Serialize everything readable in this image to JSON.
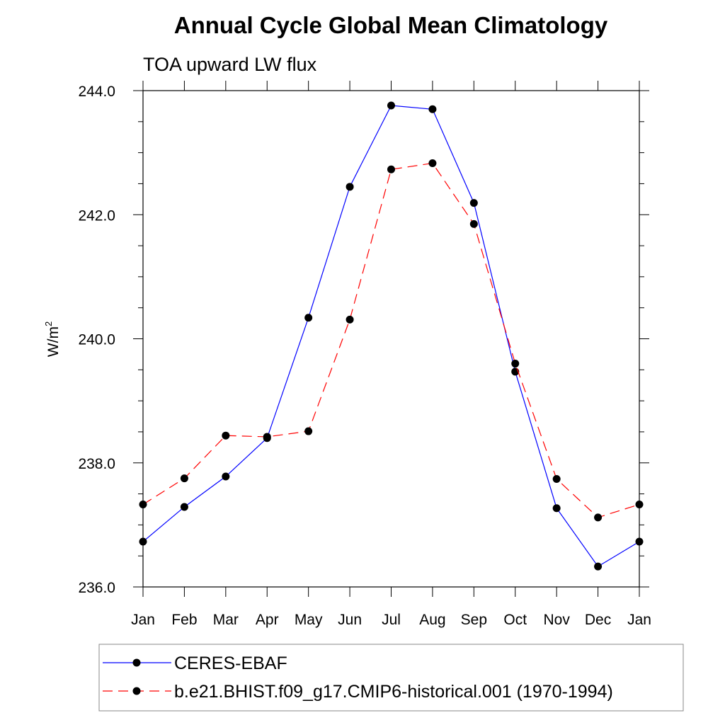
{
  "chart_data": {
    "type": "line",
    "title": "Annual Cycle Global Mean Climatology",
    "subtitle": "TOA upward LW flux",
    "ylabel_base": "W/m",
    "ylabel_sup": "2",
    "ylim": [
      236.0,
      244.0
    ],
    "yticks": [
      "236.0",
      "238.0",
      "240.0",
      "242.0",
      "244.0"
    ],
    "ytick_values": [
      236.0,
      238.0,
      240.0,
      242.0,
      244.0
    ],
    "categories": [
      "Jan",
      "Feb",
      "Mar",
      "Apr",
      "May",
      "Jun",
      "Jul",
      "Aug",
      "Sep",
      "Oct",
      "Nov",
      "Dec",
      "Jan"
    ],
    "grid": false,
    "legend_position": "bottom",
    "series": [
      {
        "name": "CERES-EBAF",
        "color": "#0000ff",
        "dash": "solid",
        "values": [
          236.73,
          237.29,
          237.78,
          238.4,
          240.34,
          242.45,
          243.76,
          243.7,
          242.19,
          239.47,
          237.27,
          236.33,
          236.73
        ]
      },
      {
        "name": "b.e21.BHIST.f09_g17.CMIP6-historical.001 (1970-1994)",
        "color": "#ff0000",
        "dash": "dashed",
        "values": [
          237.33,
          237.75,
          238.44,
          238.42,
          238.51,
          240.31,
          242.73,
          242.83,
          241.85,
          239.6,
          237.74,
          237.12,
          237.33
        ]
      }
    ]
  }
}
